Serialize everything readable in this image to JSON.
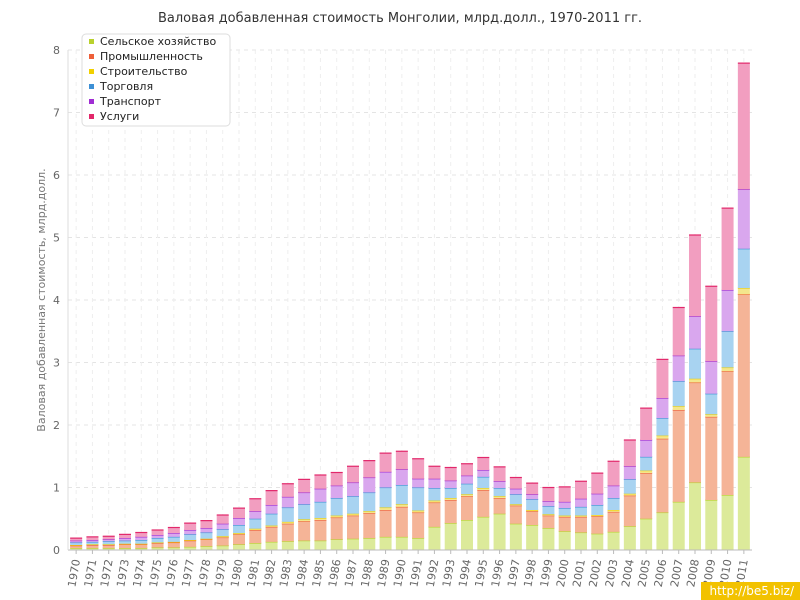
{
  "chart_data": {
    "type": "bar",
    "stacked": true,
    "title": "Валовая добавленная стоимость Монголии, млрд.долл., 1970-2011 гг.",
    "ylabel": "Валовая добавленная стоимость, млрд.долл.",
    "xlabel": "",
    "ylim": [
      0,
      8
    ],
    "yticks": [
      "0",
      "1",
      "2",
      "3",
      "4",
      "5",
      "6",
      "7",
      "8"
    ],
    "grid": true,
    "legend_position": "top-left",
    "categories": [
      "1970",
      "1971",
      "1972",
      "1973",
      "1974",
      "1975",
      "1976",
      "1977",
      "1978",
      "1979",
      "1980",
      "1981",
      "1982",
      "1983",
      "1984",
      "1985",
      "1986",
      "1987",
      "1988",
      "1989",
      "1990",
      "1991",
      "1992",
      "1993",
      "1994",
      "1995",
      "1996",
      "1997",
      "1998",
      "1999",
      "2000",
      "2001",
      "2002",
      "2003",
      "2004",
      "2005",
      "2006",
      "2007",
      "2008",
      "2009",
      "2010",
      "2011"
    ],
    "series": [
      {
        "name": "Сельское хозяйство",
        "color": "#b9d12d",
        "fill": "#dcea9a",
        "values": [
          0.03,
          0.03,
          0.03,
          0.03,
          0.03,
          0.04,
          0.04,
          0.05,
          0.06,
          0.07,
          0.09,
          0.11,
          0.13,
          0.14,
          0.15,
          0.15,
          0.17,
          0.18,
          0.19,
          0.21,
          0.21,
          0.19,
          0.37,
          0.43,
          0.48,
          0.53,
          0.58,
          0.42,
          0.4,
          0.35,
          0.3,
          0.28,
          0.26,
          0.29,
          0.38,
          0.5,
          0.6,
          0.77,
          1.08,
          0.8,
          0.88,
          1.49
        ]
      },
      {
        "name": "Промышленность",
        "color": "#ee5f39",
        "fill": "#f5b497",
        "values": [
          0.04,
          0.05,
          0.05,
          0.06,
          0.06,
          0.07,
          0.08,
          0.1,
          0.11,
          0.13,
          0.16,
          0.21,
          0.24,
          0.28,
          0.31,
          0.33,
          0.35,
          0.37,
          0.4,
          0.43,
          0.48,
          0.41,
          0.39,
          0.37,
          0.38,
          0.43,
          0.25,
          0.29,
          0.22,
          0.2,
          0.23,
          0.25,
          0.28,
          0.32,
          0.49,
          0.73,
          1.18,
          1.47,
          1.6,
          1.33,
          1.98,
          2.6
        ]
      },
      {
        "name": "Строительство",
        "color": "#f1d000",
        "fill": "#f4e68c",
        "values": [
          0.01,
          0.01,
          0.01,
          0.01,
          0.01,
          0.01,
          0.01,
          0.01,
          0.01,
          0.02,
          0.02,
          0.02,
          0.02,
          0.03,
          0.03,
          0.03,
          0.03,
          0.03,
          0.03,
          0.04,
          0.04,
          0.03,
          0.03,
          0.03,
          0.03,
          0.03,
          0.03,
          0.02,
          0.02,
          0.02,
          0.02,
          0.02,
          0.02,
          0.03,
          0.03,
          0.04,
          0.05,
          0.06,
          0.06,
          0.04,
          0.06,
          0.1
        ]
      },
      {
        "name": "Торговля",
        "color": "#3d90d5",
        "fill": "#a8d3f1",
        "values": [
          0.04,
          0.04,
          0.05,
          0.05,
          0.06,
          0.07,
          0.08,
          0.09,
          0.1,
          0.11,
          0.13,
          0.16,
          0.19,
          0.23,
          0.24,
          0.26,
          0.28,
          0.28,
          0.3,
          0.32,
          0.31,
          0.37,
          0.2,
          0.16,
          0.17,
          0.18,
          0.13,
          0.16,
          0.17,
          0.13,
          0.12,
          0.14,
          0.16,
          0.19,
          0.23,
          0.22,
          0.28,
          0.4,
          0.48,
          0.33,
          0.58,
          0.63
        ]
      },
      {
        "name": "Транспорт",
        "color": "#a02dd3",
        "fill": "#d9a7ee",
        "values": [
          0.03,
          0.03,
          0.03,
          0.04,
          0.05,
          0.05,
          0.06,
          0.07,
          0.07,
          0.09,
          0.11,
          0.12,
          0.14,
          0.17,
          0.19,
          0.21,
          0.2,
          0.22,
          0.24,
          0.25,
          0.25,
          0.14,
          0.15,
          0.12,
          0.13,
          0.11,
          0.11,
          0.09,
          0.08,
          0.08,
          0.1,
          0.13,
          0.18,
          0.2,
          0.21,
          0.27,
          0.32,
          0.41,
          0.52,
          0.52,
          0.66,
          0.95
        ]
      },
      {
        "name": "Услуги",
        "color": "#e2276a",
        "fill": "#f29ec0",
        "values": [
          0.04,
          0.05,
          0.05,
          0.06,
          0.07,
          0.08,
          0.09,
          0.11,
          0.12,
          0.14,
          0.16,
          0.2,
          0.23,
          0.21,
          0.21,
          0.22,
          0.21,
          0.26,
          0.27,
          0.3,
          0.29,
          0.32,
          0.2,
          0.21,
          0.19,
          0.2,
          0.23,
          0.18,
          0.18,
          0.22,
          0.24,
          0.28,
          0.33,
          0.39,
          0.42,
          0.51,
          0.62,
          0.77,
          1.3,
          1.2,
          1.31,
          2.02
        ]
      }
    ]
  },
  "watermark": "http://be5.biz/"
}
